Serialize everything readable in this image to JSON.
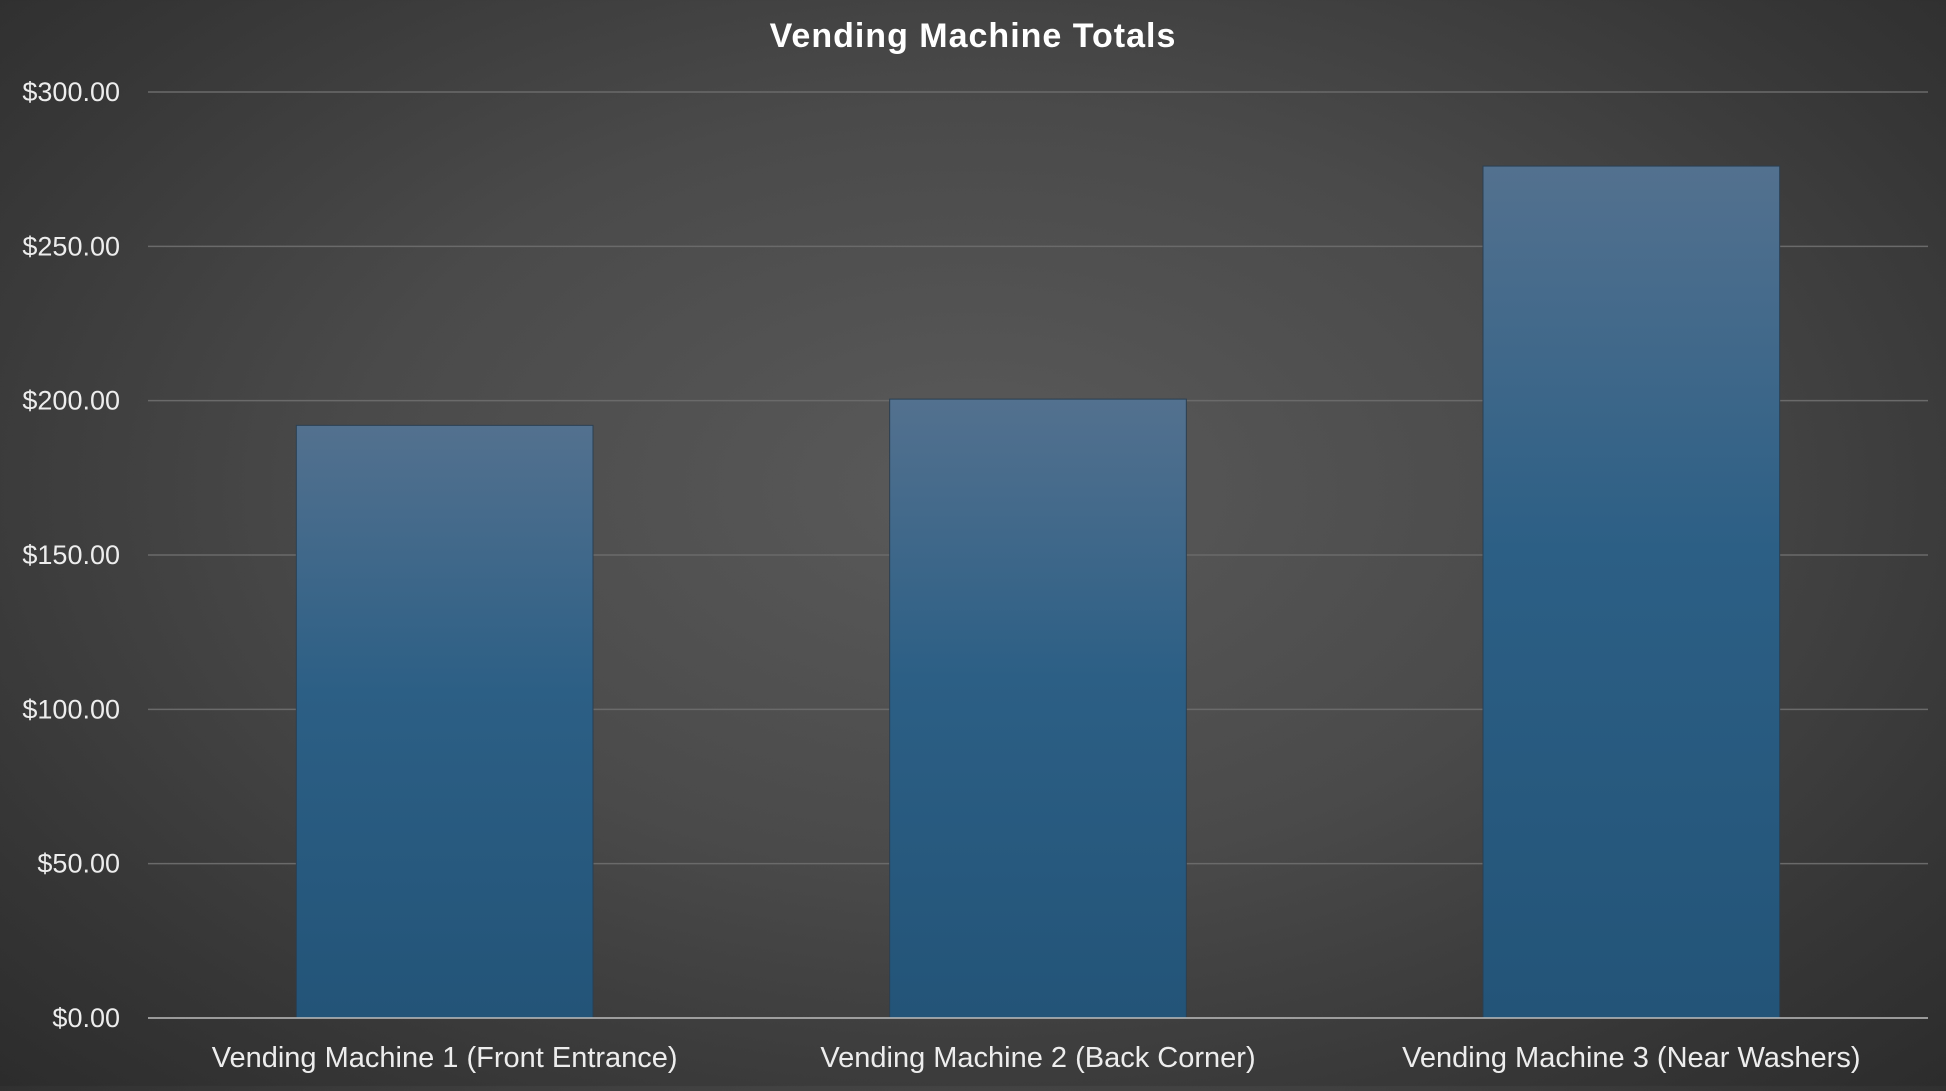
{
  "chart_data": {
    "type": "bar",
    "title": "Vending Machine Totals",
    "categories": [
      "Vending  Machine 1 (Front Entrance)",
      "Vending Machine 2 (Back Corner)",
      "Vending Machine 3 (Near Washers)"
    ],
    "values": [
      192,
      200.5,
      276
    ],
    "ylim": [
      0,
      300
    ],
    "yticks": [
      0,
      50,
      100,
      150,
      200,
      250,
      300
    ],
    "ytick_labels": [
      "$0.00",
      "$50.00",
      "$100.00",
      "$150.00",
      "$200.00",
      "$250.00",
      "$300.00"
    ],
    "grid": true,
    "legend": "none",
    "colors": {
      "bar_top": "#53718f",
      "bar_bottom": "#235478",
      "background": "#4a4a4a",
      "text": "#ededed"
    }
  }
}
